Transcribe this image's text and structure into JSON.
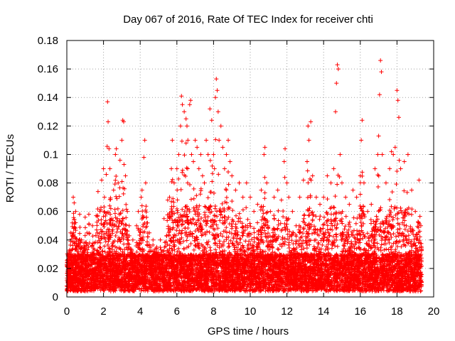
{
  "chart_data": {
    "type": "scatter",
    "title": "Day 067 of 2016, Rate Of TEC Index for receiver chti",
    "xlabel": "GPS time / hours",
    "ylabel": "ROTI / TECUs",
    "xlim": [
      0,
      20
    ],
    "ylim": [
      0,
      0.18
    ],
    "x_ticks": [
      0,
      2,
      4,
      6,
      8,
      10,
      12,
      14,
      16,
      18,
      20
    ],
    "x_tick_labels": [
      "0",
      "2",
      "4",
      "6",
      "8",
      "10",
      "12",
      "14",
      "16",
      "18",
      "20"
    ],
    "y_ticks": [
      0,
      0.02,
      0.04,
      0.06,
      0.08,
      0.1,
      0.12,
      0.14,
      0.16,
      0.18
    ],
    "y_tick_labels": [
      "0",
      "0.02",
      "0.04",
      "0.06",
      "0.08",
      "0.1",
      "0.12",
      "0.14",
      "0.16",
      "0.18"
    ],
    "grid": true,
    "marker": "plus",
    "color": "#ff0000",
    "series": [
      {
        "points": [
          [
            0.05,
            0.012
          ],
          [
            0.12,
            0.025
          ],
          [
            0.2,
            0.045
          ],
          [
            0.3,
            0.052
          ],
          [
            0.35,
            0.07
          ],
          [
            0.4,
            0.066
          ],
          [
            0.48,
            0.06
          ],
          [
            0.55,
            0.035
          ],
          [
            0.62,
            0.02
          ],
          [
            0.7,
            0.058
          ],
          [
            0.8,
            0.04
          ],
          [
            0.9,
            0.03
          ],
          [
            1.0,
            0.056
          ],
          [
            1.1,
            0.045
          ],
          [
            1.2,
            0.058
          ],
          [
            1.3,
            0.03
          ],
          [
            1.4,
            0.05
          ],
          [
            1.5,
            0.038
          ],
          [
            1.6,
            0.057
          ],
          [
            1.7,
            0.074
          ],
          [
            1.8,
            0.06
          ],
          [
            1.9,
            0.082
          ],
          [
            2.0,
            0.09
          ],
          [
            2.05,
            0.07
          ],
          [
            2.15,
            0.086
          ],
          [
            2.22,
            0.137
          ],
          [
            2.25,
            0.123
          ],
          [
            2.3,
            0.104
          ],
          [
            2.35,
            0.09
          ],
          [
            2.45,
            0.055
          ],
          [
            2.55,
            0.075
          ],
          [
            2.65,
            0.1
          ],
          [
            2.7,
            0.104
          ],
          [
            2.8,
            0.08
          ],
          [
            2.9,
            0.096
          ],
          [
            3.0,
            0.11
          ],
          [
            3.05,
            0.124
          ],
          [
            3.1,
            0.123
          ],
          [
            3.2,
            0.085
          ],
          [
            3.3,
            0.06
          ],
          [
            3.4,
            0.05
          ],
          [
            3.6,
            0.04
          ],
          [
            3.8,
            0.05
          ],
          [
            3.9,
            0.06
          ],
          [
            4.05,
            0.07
          ],
          [
            4.1,
            0.075
          ],
          [
            4.2,
            0.098
          ],
          [
            4.25,
            0.11
          ],
          [
            4.3,
            0.08
          ],
          [
            4.4,
            0.052
          ],
          [
            4.5,
            0.045
          ],
          [
            4.7,
            0.04
          ],
          [
            4.9,
            0.035
          ],
          [
            5.1,
            0.04
          ],
          [
            5.3,
            0.055
          ],
          [
            5.5,
            0.068
          ],
          [
            5.6,
            0.07
          ],
          [
            5.7,
            0.09
          ],
          [
            5.75,
            0.11
          ],
          [
            5.85,
            0.08
          ],
          [
            6.0,
            0.09
          ],
          [
            6.1,
            0.1
          ],
          [
            6.2,
            0.12
          ],
          [
            6.25,
            0.141
          ],
          [
            6.3,
            0.135
          ],
          [
            6.4,
            0.13
          ],
          [
            6.5,
            0.125
          ],
          [
            6.55,
            0.12
          ],
          [
            6.6,
            0.11
          ],
          [
            6.7,
            0.135
          ],
          [
            6.75,
            0.138
          ],
          [
            6.8,
            0.1
          ],
          [
            6.9,
            0.095
          ],
          [
            7.0,
            0.11
          ],
          [
            7.1,
            0.105
          ],
          [
            7.2,
            0.09
          ],
          [
            7.3,
            0.1
          ],
          [
            7.4,
            0.085
          ],
          [
            7.5,
            0.08
          ],
          [
            7.6,
            0.11
          ],
          [
            7.7,
            0.1
          ],
          [
            7.8,
            0.132
          ],
          [
            7.9,
            0.124
          ],
          [
            8.0,
            0.1
          ],
          [
            8.05,
            0.09
          ],
          [
            8.1,
            0.14
          ],
          [
            8.15,
            0.153
          ],
          [
            8.2,
            0.145
          ],
          [
            8.25,
            0.13
          ],
          [
            8.3,
            0.11
          ],
          [
            8.4,
            0.12
          ],
          [
            8.5,
            0.105
          ],
          [
            8.6,
            0.09
          ],
          [
            8.7,
            0.1
          ],
          [
            8.8,
            0.11
          ],
          [
            8.9,
            0.095
          ],
          [
            9.0,
            0.085
          ],
          [
            9.2,
            0.075
          ],
          [
            9.4,
            0.08
          ],
          [
            9.6,
            0.07
          ],
          [
            9.8,
            0.08
          ],
          [
            10.0,
            0.07
          ],
          [
            10.2,
            0.06
          ],
          [
            10.4,
            0.065
          ],
          [
            10.6,
            0.075
          ],
          [
            10.75,
            0.1
          ],
          [
            10.8,
            0.105
          ],
          [
            10.9,
            0.08
          ],
          [
            11.1,
            0.06
          ],
          [
            11.3,
            0.07
          ],
          [
            11.5,
            0.075
          ],
          [
            11.7,
            0.068
          ],
          [
            11.85,
            0.095
          ],
          [
            11.9,
            0.104
          ],
          [
            12.0,
            0.08
          ],
          [
            12.1,
            0.07
          ],
          [
            12.3,
            0.06
          ],
          [
            12.5,
            0.05
          ],
          [
            12.7,
            0.07
          ],
          [
            12.9,
            0.082
          ],
          [
            13.1,
            0.095
          ],
          [
            13.15,
            0.12
          ],
          [
            13.2,
            0.11
          ],
          [
            13.3,
            0.123
          ],
          [
            13.4,
            0.085
          ],
          [
            13.6,
            0.07
          ],
          [
            13.8,
            0.065
          ],
          [
            14.0,
            0.07
          ],
          [
            14.2,
            0.085
          ],
          [
            14.4,
            0.08
          ],
          [
            14.55,
            0.09
          ],
          [
            14.65,
            0.13
          ],
          [
            14.7,
            0.15
          ],
          [
            14.75,
            0.163
          ],
          [
            14.8,
            0.16
          ],
          [
            14.9,
            0.1
          ],
          [
            15.0,
            0.08
          ],
          [
            15.2,
            0.07
          ],
          [
            15.4,
            0.065
          ],
          [
            15.6,
            0.075
          ],
          [
            15.8,
            0.07
          ],
          [
            16.0,
            0.085
          ],
          [
            16.05,
            0.11
          ],
          [
            16.1,
            0.124
          ],
          [
            16.2,
            0.08
          ],
          [
            16.4,
            0.06
          ],
          [
            16.6,
            0.065
          ],
          [
            16.8,
            0.09
          ],
          [
            16.95,
            0.1
          ],
          [
            17.0,
            0.113
          ],
          [
            17.05,
            0.142
          ],
          [
            17.1,
            0.166
          ],
          [
            17.15,
            0.158
          ],
          [
            17.2,
            0.1
          ],
          [
            17.4,
            0.08
          ],
          [
            17.6,
            0.09
          ],
          [
            17.7,
            0.102
          ],
          [
            17.8,
            0.1
          ],
          [
            17.9,
            0.105
          ],
          [
            18.0,
            0.145
          ],
          [
            18.05,
            0.138
          ],
          [
            18.1,
            0.126
          ],
          [
            18.2,
            0.09
          ],
          [
            18.4,
            0.095
          ],
          [
            18.6,
            0.1
          ],
          [
            18.8,
            0.075
          ],
          [
            19.0,
            0.06
          ],
          [
            19.2,
            0.082
          ],
          [
            19.3,
            0.05
          ]
        ]
      }
    ]
  }
}
